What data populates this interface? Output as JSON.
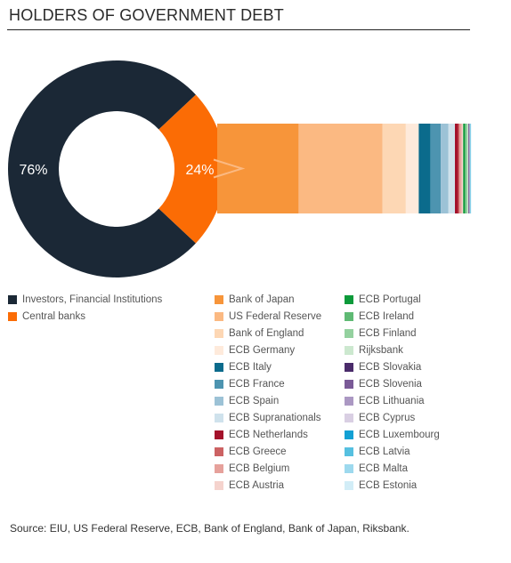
{
  "title": "HOLDERS OF GOVERNMENT DEBT",
  "source": "Source: EIU, US Federal Reserve, ECB, Bank of England, Bank of Japan, Riksbank.",
  "chart_data": [
    {
      "type": "pie",
      "style": "donut",
      "slices": [
        {
          "name": "Investors, Financial Institutions",
          "value": 76,
          "label": "76%",
          "color": "#1b2836"
        },
        {
          "name": "Central banks",
          "value": 24,
          "label": "24%",
          "color": "#fb6c05"
        }
      ]
    },
    {
      "type": "bar",
      "orientation": "horizontal-stacked",
      "description_of": "Central banks",
      "series": [
        {
          "name": "Bank of Japan",
          "value": 31.5,
          "color": "#f7953a"
        },
        {
          "name": "US Federal Reserve",
          "value": 32.5,
          "color": "#fbb982"
        },
        {
          "name": "Bank of England",
          "value": 9.0,
          "color": "#fdd7b4"
        },
        {
          "name": "ECB Germany",
          "value": 5.0,
          "color": "#feeadb"
        },
        {
          "name": "ECB Italy",
          "value": 4.5,
          "color": "#0b6b8c"
        },
        {
          "name": "ECB France",
          "value": 4.0,
          "color": "#4d94b0"
        },
        {
          "name": "ECB Spain",
          "value": 3.0,
          "color": "#9cc2d6"
        },
        {
          "name": "ECB Supranationals",
          "value": 2.5,
          "color": "#cfe2ec"
        },
        {
          "name": "ECB Netherlands",
          "value": 1.2,
          "color": "#a4122b"
        },
        {
          "name": "ECB Greece",
          "value": 0.6,
          "color": "#cc6263"
        },
        {
          "name": "ECB Belgium",
          "value": 0.8,
          "color": "#e6a19b"
        },
        {
          "name": "ECB Austria",
          "value": 0.6,
          "color": "#f5d3cd"
        },
        {
          "name": "ECB Portugal",
          "value": 0.7,
          "color": "#0c9a3a"
        },
        {
          "name": "ECB Ireland",
          "value": 0.5,
          "color": "#5fba74"
        },
        {
          "name": "ECB Finland",
          "value": 0.4,
          "color": "#94d19f"
        },
        {
          "name": "Rijksbank",
          "value": 0.4,
          "color": "#cce8cf"
        },
        {
          "name": "ECB Slovakia",
          "value": 0.2,
          "color": "#4a2b6a"
        },
        {
          "name": "ECB Slovenia",
          "value": 0.2,
          "color": "#7a5a97"
        },
        {
          "name": "ECB Lithuania",
          "value": 0.1,
          "color": "#ab98c3"
        },
        {
          "name": "ECB Cyprus",
          "value": 0.1,
          "color": "#d9cfe3"
        },
        {
          "name": "ECB Luxembourg",
          "value": 0.1,
          "color": "#12a0d4"
        },
        {
          "name": "ECB Latvia",
          "value": 0.1,
          "color": "#56c0e0"
        },
        {
          "name": "ECB Malta",
          "value": 0.1,
          "color": "#9dd9ee"
        },
        {
          "name": "ECB Estonia",
          "value": 0.1,
          "color": "#d2edf7"
        }
      ]
    }
  ],
  "legends": {
    "donut": [
      {
        "label": "Investors, Financial Institutions",
        "color": "#1b2836"
      },
      {
        "label": "Central banks",
        "color": "#fb6c05"
      }
    ],
    "bar_col1": [
      {
        "label": "Bank of Japan",
        "color": "#f7953a"
      },
      {
        "label": "US Federal Reserve",
        "color": "#fbb982"
      },
      {
        "label": "Bank of England",
        "color": "#fdd7b4"
      },
      {
        "label": "ECB Germany",
        "color": "#feeadb"
      },
      {
        "label": "ECB Italy",
        "color": "#0b6b8c"
      },
      {
        "label": "ECB France",
        "color": "#4d94b0"
      },
      {
        "label": "ECB Spain",
        "color": "#9cc2d6"
      },
      {
        "label": "ECB Supranationals",
        "color": "#cfe2ec"
      },
      {
        "label": "ECB Netherlands",
        "color": "#a4122b"
      },
      {
        "label": "ECB Greece",
        "color": "#cc6263"
      },
      {
        "label": "ECB Belgium",
        "color": "#e6a19b"
      },
      {
        "label": "ECB Austria",
        "color": "#f5d3cd"
      }
    ],
    "bar_col2": [
      {
        "label": "ECB Portugal",
        "color": "#0c9a3a"
      },
      {
        "label": "ECB Ireland",
        "color": "#5fba74"
      },
      {
        "label": "ECB Finland",
        "color": "#94d19f"
      },
      {
        "label": "Rijksbank",
        "color": "#cce8cf"
      },
      {
        "label": "ECB Slovakia",
        "color": "#4a2b6a"
      },
      {
        "label": "ECB Slovenia",
        "color": "#7a5a97"
      },
      {
        "label": "ECB Lithuania",
        "color": "#ab98c3"
      },
      {
        "label": "ECB Cyprus",
        "color": "#d9cfe3"
      },
      {
        "label": "ECB Luxembourg",
        "color": "#12a0d4"
      },
      {
        "label": "ECB Latvia",
        "color": "#56c0e0"
      },
      {
        "label": "ECB Malta",
        "color": "#9dd9ee"
      },
      {
        "label": "ECB Estonia",
        "color": "#d2edf7"
      }
    ]
  }
}
